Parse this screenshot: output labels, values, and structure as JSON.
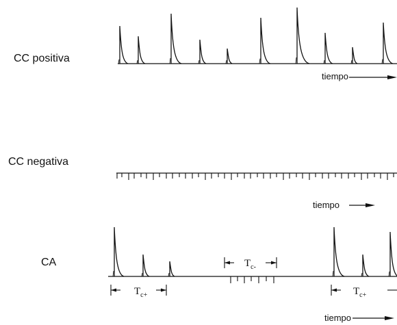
{
  "rows": {
    "dc_positive": {
      "label": "CC positiva",
      "axis_label": "tiempo"
    },
    "dc_negative": {
      "label": "CC negativa",
      "axis_label": "tiempo"
    },
    "ac": {
      "label": "CA",
      "axis_label": "tiempo",
      "interval_positive": {
        "main": "T",
        "sub": "c+"
      },
      "interval_negative": {
        "main": "T",
        "sub": "c-"
      }
    }
  }
}
